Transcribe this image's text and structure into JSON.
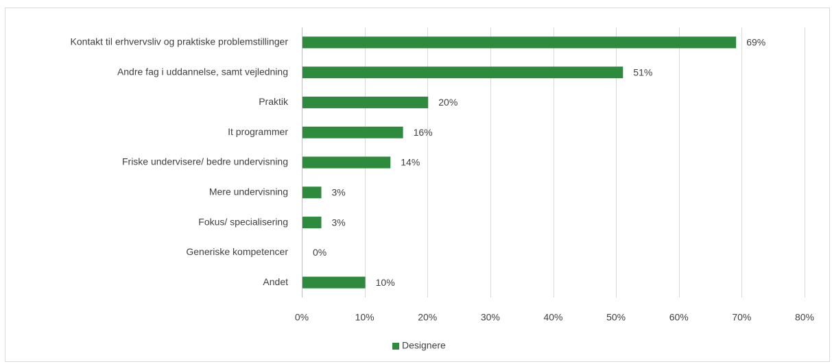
{
  "caption": "",
  "chart_data": {
    "type": "bar",
    "orientation": "horizontal",
    "categories": [
      "Kontakt til erhvervsliv og praktiske problemstillinger",
      "Andre fag i uddannelse, samt vejledning",
      "Praktik",
      "It programmer",
      "Friske undervisere/ bedre undervisning",
      "Mere undervisning",
      "Fokus/ specialisering",
      "Generiske kompetencer",
      "Andet"
    ],
    "series": [
      {
        "name": "Designere",
        "values": [
          69,
          51,
          20,
          16,
          14,
          3,
          3,
          0,
          10
        ],
        "data_labels": [
          "69%",
          "51%",
          "20%",
          "16%",
          "14%",
          "3%",
          "3%",
          "0%",
          "10%"
        ],
        "color": "#2e8b3e"
      }
    ],
    "xlim": [
      0,
      80
    ],
    "xticks": [
      0,
      10,
      20,
      30,
      40,
      50,
      60,
      70,
      80
    ],
    "xtick_labels": [
      "0%",
      "10%",
      "20%",
      "30%",
      "40%",
      "50%",
      "60%",
      "70%",
      "80%"
    ],
    "grid": true,
    "legend_position": "bottom",
    "gridline_color": "#d9d9d9"
  }
}
